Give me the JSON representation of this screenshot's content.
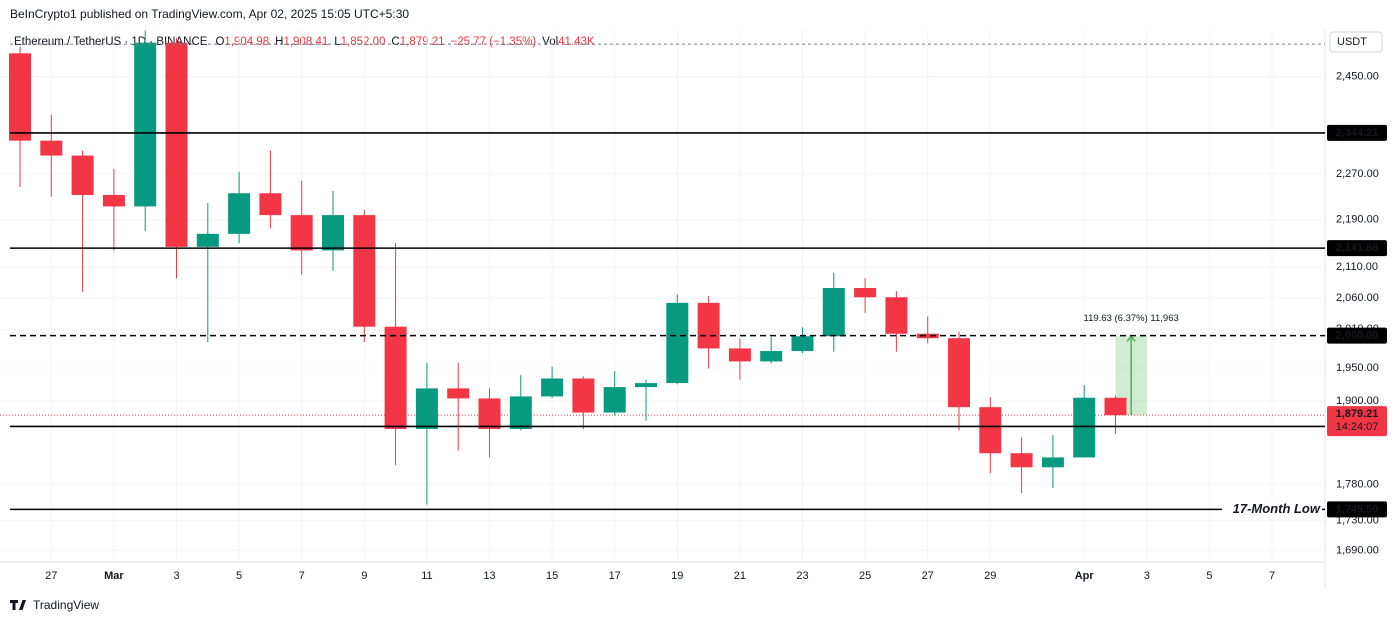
{
  "chart_data": {
    "type": "candlestick",
    "header": "BeInCrypto1 published on TradingView.com, Apr 02, 2025 15:05 UTC+5:30",
    "legend": {
      "symbol": "Ethereum / TetherUS · 1D · BINANCE",
      "ohlc": [
        {
          "key": "O",
          "value": "1,904.98"
        },
        {
          "key": "H",
          "value": "1,908.41"
        },
        {
          "key": "L",
          "value": "1,852.00"
        },
        {
          "key": "C",
          "value": "1,879.21"
        }
      ],
      "change": "−25.77 (−1.35%)",
      "volume_key": "Vol",
      "volume": "41.43K"
    },
    "currency": "USDT",
    "footer": "TradingView",
    "categories": [
      null,
      "27",
      null,
      "Mar",
      null,
      "3",
      null,
      "5",
      null,
      "7",
      null,
      "9",
      null,
      "11",
      null,
      "13",
      null,
      "15",
      null,
      "17",
      null,
      "19",
      null,
      "21",
      null,
      "23",
      null,
      "25",
      null,
      "27",
      null,
      "29",
      null,
      null,
      "Apr",
      null,
      "3",
      null,
      "5",
      null,
      "7",
      null
    ],
    "open": [
      2495,
      2330,
      2303,
      2233,
      2213,
      2516,
      2144,
      2166,
      2236,
      2198,
      2138,
      2198,
      2014,
      1859,
      1919,
      1904,
      1859,
      1907,
      1934,
      1883,
      1921,
      1927,
      2052,
      1980,
      1960,
      1976,
      1999,
      2076,
      2061,
      2003,
      1996,
      1891,
      1824,
      1804,
      1818,
      1904.98,
      null,
      null,
      null,
      null,
      null,
      null
    ],
    "high": [
      2508,
      2378,
      2312,
      2279,
      2540,
      2525,
      2219,
      2274,
      2312,
      2258,
      2240,
      2207,
      2150,
      1958,
      1958,
      1919,
      1939,
      1952,
      1937,
      1945,
      1932,
      2066,
      2063,
      1995,
      1998,
      2013,
      2101,
      2092,
      2071,
      2030,
      2006,
      1906,
      1847,
      1850,
      1924,
      1908.41,
      null,
      null,
      null,
      null,
      null,
      null
    ],
    "low": [
      2247,
      2230,
      2070,
      2138,
      2171,
      2092,
      1990,
      2150,
      2175,
      2098,
      2104,
      1990,
      1807,
      1752,
      1828,
      1818,
      1857,
      1905,
      1859,
      1879,
      1871,
      1925,
      1949,
      1932,
      1957,
      1973,
      1975,
      2036,
      1975,
      1988,
      1857,
      1796,
      1768,
      1775,
      1818,
      1852.0,
      null,
      null,
      null,
      null,
      null,
      null
    ],
    "close": [
      2330,
      2303,
      2233,
      2213,
      2516,
      2144,
      2166,
      2236,
      2198,
      2138,
      2198,
      2014,
      1859,
      1919,
      1904,
      1859,
      1907,
      1934,
      1883,
      1921,
      1927,
      2052,
      1980,
      1960,
      1976,
      1999,
      2076,
      2061,
      2003,
      1996,
      1891,
      1824,
      1804,
      1818,
      1905,
      1879.21,
      null,
      null,
      null,
      null,
      null,
      null
    ],
    "up_color": "#089981",
    "down_color": "#f23645",
    "log_scale": true,
    "grid": true,
    "ylim": [
      1675,
      2541
    ],
    "yticks": [
      {
        "value": 2450,
        "label": "2,450.00"
      },
      {
        "value": 2270,
        "label": "2,270.00"
      },
      {
        "value": 2190,
        "label": "2,190.00"
      },
      {
        "value": 2110,
        "label": "2,110.00"
      },
      {
        "value": 2060,
        "label": "2,060.00"
      },
      {
        "value": 2010,
        "label": "2,010.00"
      },
      {
        "value": 1950,
        "label": "1,950.00"
      },
      {
        "value": 1900,
        "label": "1,900.00"
      },
      {
        "value": 1780,
        "label": "1,780.00"
      },
      {
        "value": 1730,
        "label": "1,730.00"
      },
      {
        "value": 1690,
        "label": "1,690.00"
      }
    ],
    "hlines": [
      {
        "value": 2513,
        "style": "dotted"
      },
      {
        "value": 2344.21,
        "label": "2,344.21",
        "style": "solid"
      },
      {
        "value": 2141.88,
        "label": "2,141.88",
        "style": "solid"
      },
      {
        "value": 2000.0,
        "label": "2,000.00",
        "style": "dashed"
      },
      {
        "value": 1862.73,
        "label": "1,862.73",
        "style": "solid"
      },
      {
        "value": 1745.5,
        "label": "1,745.50",
        "style": "solid",
        "annotation": "17-Month Low"
      }
    ],
    "current_price": {
      "value": 1879.21,
      "label": "1,879.21",
      "countdown": "14:24:07"
    },
    "measure": {
      "from": 1879.21,
      "to": 1998.84,
      "text": "119.63 (6.37%) 11,963",
      "color": "#4caf50"
    }
  }
}
